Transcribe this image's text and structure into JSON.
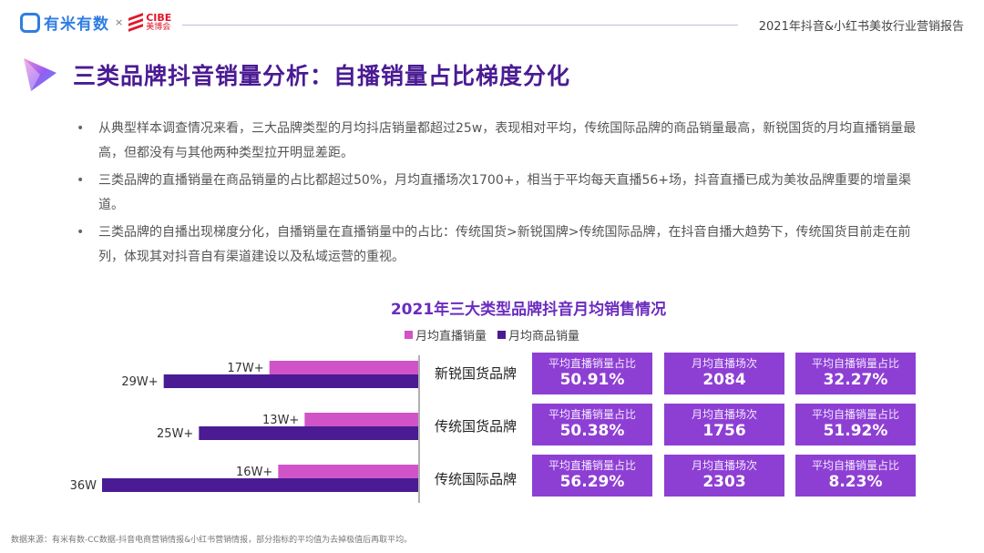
{
  "header": {
    "logo_text": "有米有数",
    "logo_sep": "×",
    "partner_en": "CIBE",
    "partner_cn": "美博会",
    "report_title": "2021年抖音&小红书美妆行业营销报告"
  },
  "page_title": "三类品牌抖音销量分析：自播销量占比梯度分化",
  "bullets": [
    "从典型样本调查情况来看，三大品牌类型的月均抖店销量都超过25w，表现相对平均，传统国际品牌的商品销量最高，新锐国货的月均直播销量最高，但都没有与其他两种类型拉开明显差距。",
    "三类品牌的直播销量在商品销量的占比都超过50%，月均直播场次1700+，相当于平均每天直播56+场，抖音直播已成为美妆品牌重要的增量渠道。",
    "三类品牌的自播出现梯度分化，自播销量在直播销量中的占比：传统国货>新锐国牌>传统国际品牌，在抖音自播大趋势下，传统国货目前走在前列，体现其对抖音自有渠道建设以及私域运营的重视。"
  ],
  "chart_data": {
    "type": "bar",
    "orientation": "horizontal",
    "title": "2021年三大类型品牌抖音月均销售情况",
    "categories": [
      "新锐国货品牌",
      "传统国货品牌",
      "传统国际品牌"
    ],
    "series": [
      {
        "name": "月均直播销量",
        "color": "#d054c7",
        "values": [
          17,
          13,
          16
        ],
        "labels": [
          "17W+",
          "13W+",
          "16W+"
        ]
      },
      {
        "name": "月均商品销量",
        "color": "#4a1b93",
        "values": [
          29,
          25,
          36
        ],
        "labels": [
          "29W+",
          "25W+",
          "36W"
        ]
      }
    ],
    "value_unit": "W",
    "xlim": [
      0,
      36
    ],
    "grid": false,
    "legend": "top",
    "stats": [
      [
        {
          "label": "平均直播销量占比",
          "value": "50.91%"
        },
        {
          "label": "月均直播场次",
          "value": "2084"
        },
        {
          "label": "平均自播销量占比",
          "value": "32.27%"
        }
      ],
      [
        {
          "label": "平均直播销量占比",
          "value": "50.38%"
        },
        {
          "label": "月均直播场次",
          "value": "1756"
        },
        {
          "label": "平均自播销量占比",
          "value": "51.92%"
        }
      ],
      [
        {
          "label": "平均直播销量占比",
          "value": "56.29%"
        },
        {
          "label": "月均直播场次",
          "value": "2303"
        },
        {
          "label": "平均自播销量占比",
          "value": "8.23%"
        }
      ]
    ]
  },
  "footnote": "数据来源：有米有数-CC数据-抖音电商营销情报&小红书营销情报，部分指标的平均值为去掉极值后再取平均。",
  "colors": {
    "accent": "#4a1b93",
    "live": "#d054c7",
    "box": "#8e3fd3"
  }
}
